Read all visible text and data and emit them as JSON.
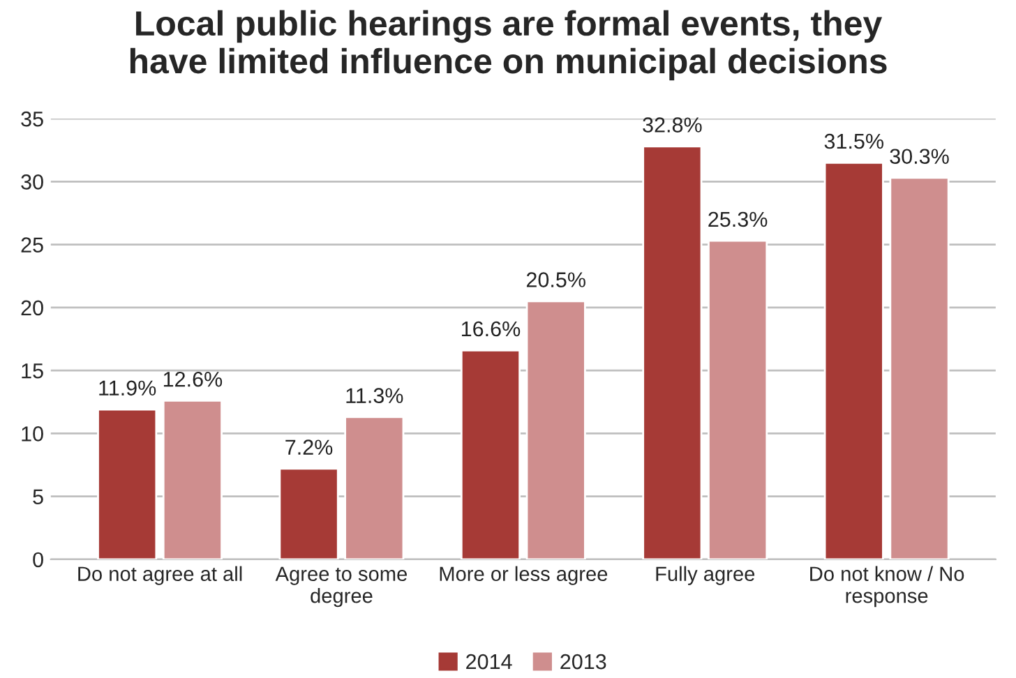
{
  "chart_data": {
    "type": "bar",
    "title": "Local public hearings are formal events, they\nhave limited influence on municipal decisions",
    "categories": [
      "Do not agree at all",
      "Agree to some degree",
      "More or less agree",
      "Fully agree",
      "Do not know / No response"
    ],
    "series": [
      {
        "name": "2014",
        "color": "#a63a36",
        "values": [
          11.9,
          7.2,
          16.6,
          32.8,
          31.5
        ],
        "value_labels": [
          "11.9%",
          "7.2%",
          "16.6%",
          "32.8%",
          "31.5%"
        ]
      },
      {
        "name": "2013",
        "color": "#cf8e8e",
        "values": [
          12.6,
          11.3,
          20.5,
          25.3,
          30.3
        ],
        "value_labels": [
          "12.6%",
          "11.3%",
          "20.5%",
          "25.3%",
          "30.3%"
        ]
      }
    ],
    "ylim": [
      0,
      35
    ],
    "yticks": [
      0,
      5,
      10,
      15,
      20,
      25,
      30,
      35
    ],
    "grid": "y",
    "legend": "bottom"
  }
}
